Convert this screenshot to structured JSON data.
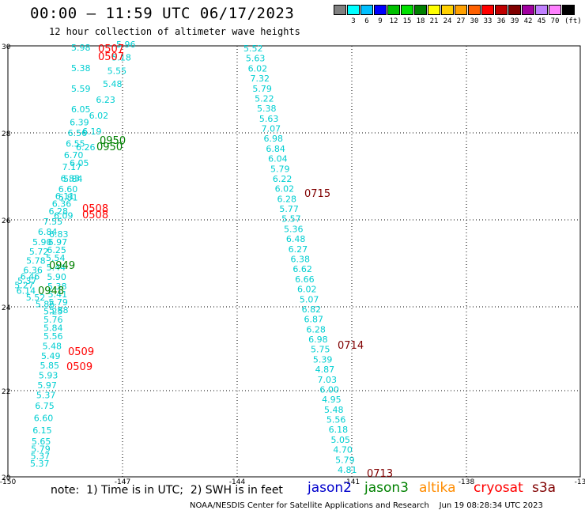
{
  "title": "00:00 – 11:59 UTC 06/17/2023",
  "subtitle": "12 hour collection of altimeter wave heights",
  "legend": {
    "colors": [
      "#808080",
      "#00ffff",
      "#00bfff",
      "#0000ff",
      "#00c000",
      "#00e000",
      "#008000",
      "#ffff00",
      "#ffd000",
      "#ffa000",
      "#ff6000",
      "#ff0000",
      "#c00000",
      "#800000",
      "#a000a0",
      "#c080ff",
      "#ff80ff",
      "#000000"
    ],
    "labels": [
      "3",
      "6",
      "9",
      "12",
      "15",
      "18",
      "21",
      "24",
      "27",
      "30",
      "33",
      "36",
      "39",
      "42",
      "45",
      "70"
    ],
    "unit": "(ft)"
  },
  "axes": {
    "lon_ticks": [
      "-150",
      "-147",
      "-144",
      "-141",
      "-138",
      "-13"
    ],
    "lat_ticks": [
      "30",
      "28",
      "26",
      "24",
      "22",
      "20"
    ]
  },
  "colors": {
    "jason2": "#0000cc",
    "jason3": "#008000",
    "altika": "#ff8c00",
    "cryosat": "#ff0000",
    "s3a": "#800000"
  },
  "note": "note:  1) Time is in UTC;  2) SWH is in feet",
  "satellites": [
    {
      "name": "jason2",
      "color": "#0000cc"
    },
    {
      "name": "jason3",
      "color": "#008000"
    },
    {
      "name": "altika",
      "color": "#ff8c00"
    },
    {
      "name": "cryosat",
      "color": "#ff0000"
    },
    {
      "name": "s3a",
      "color": "#800000"
    }
  ],
  "credit": "NOAA/NESDIS Center for Satellite Applications and Research    Jun 19 08:28:34 UTC 2023",
  "tracks": {
    "track_a": {
      "color": "#00ced1",
      "values": [
        "5.52",
        "5.63",
        "6.02",
        "7.32",
        "5.79",
        "5.22",
        "5.38",
        "5.63",
        "7.07",
        "6.98",
        "6.84",
        "6.04",
        "5.79",
        "6.22",
        "6.02",
        "6.28",
        "5.77",
        "5.57",
        "5.36",
        "6.48",
        "6.27",
        "6.38",
        "6.62",
        "6.66",
        "6.02",
        "5.07",
        "6.82",
        "6.87",
        "6.28",
        "6.98",
        "5.75",
        "5.39",
        "4.87",
        "7.03",
        "6.00",
        "4.95",
        "5.48",
        "5.56",
        "6.18",
        "5.05",
        "4.70",
        "5.79",
        "4.81"
      ]
    },
    "track_a_times": [
      {
        "text": "0715",
        "color": "#800000"
      },
      {
        "text": "0714",
        "color": "#800000"
      },
      {
        "text": "0713",
        "color": "#800000"
      }
    ],
    "track_b": {
      "color": "#00ced1",
      "values": [
        "5.98",
        "5.38",
        "5.59",
        "6.05",
        "6.39",
        "6.56",
        "6.55",
        "6.70",
        "7.17",
        "6.83",
        "6.60",
        "6.11",
        "6.36",
        "6.28",
        "7.55",
        "6.84",
        "5.90",
        "5.72",
        "5.78",
        "6.36",
        "6.46",
        "5.37",
        "5.27",
        "6.14",
        "5.52",
        "5.86",
        "5.25",
        "5.76",
        "5.84",
        "5.56",
        "5.48",
        "5.49",
        "5.85",
        "5.93",
        "5.97",
        "5.37",
        "6.75",
        "6.60",
        "6.15",
        "5.65",
        "5.79",
        "5.37",
        "5.37"
      ]
    },
    "track_c": {
      "color": "#00ced1",
      "values": [
        "5.96",
        "5.18",
        "5.55",
        "5.48",
        "6.23",
        "6.02",
        "6.19",
        "6.26",
        "6.05",
        "5.84",
        "5.81",
        "6.09",
        "6.83",
        "6.97",
        "6.25",
        "5.54",
        "5.44",
        "5.90",
        "5.38",
        "5.41",
        "5.79",
        "5.88"
      ]
    },
    "time_labels": [
      {
        "text": "0507",
        "color": "#ff0000"
      },
      {
        "text": "0507",
        "color": "#ff0000"
      },
      {
        "text": "0950",
        "color": "#008000"
      },
      {
        "text": "0950",
        "color": "#008000"
      },
      {
        "text": "0508",
        "color": "#ff0000"
      },
      {
        "text": "0508",
        "color": "#ff0000"
      },
      {
        "text": "0949",
        "color": "#008000"
      },
      {
        "text": "0948",
        "color": "#008000"
      },
      {
        "text": "0509",
        "color": "#ff0000"
      },
      {
        "text": "0509",
        "color": "#ff0000"
      }
    ]
  }
}
